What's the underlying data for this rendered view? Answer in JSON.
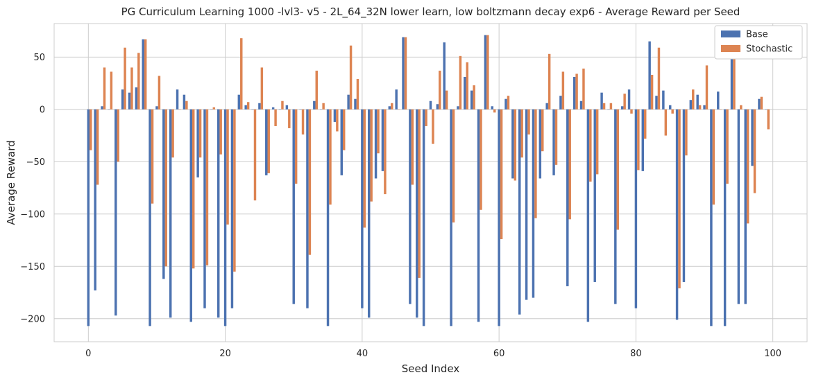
{
  "chart_data": {
    "type": "bar",
    "title": "PG Curriculum Learning 1000 -lvl3- v5 - 2L_64_32N lower learn, low boltzmann decay exp6 - Average Reward per Seed",
    "xlabel": "Seed Index",
    "ylabel": "Average Reward",
    "xlim": [
      -5,
      105
    ],
    "ylim": [
      -222,
      82
    ],
    "x_ticks": [
      0,
      20,
      40,
      60,
      80,
      100
    ],
    "y_ticks": [
      -200,
      -150,
      -100,
      -50,
      0,
      50
    ],
    "x_tick_labels": [
      "0",
      "20",
      "40",
      "60",
      "80",
      "100"
    ],
    "y_tick_labels": [
      "−200",
      "−150",
      "−100",
      "−50",
      "0",
      "50"
    ],
    "grid": true,
    "legend_position": "top-right",
    "bar_width": 0.35,
    "x": [
      0,
      1,
      2,
      3,
      4,
      5,
      6,
      7,
      8,
      9,
      10,
      11,
      12,
      13,
      14,
      15,
      16,
      17,
      18,
      19,
      20,
      21,
      22,
      23,
      24,
      25,
      26,
      27,
      28,
      29,
      30,
      31,
      32,
      33,
      34,
      35,
      36,
      37,
      38,
      39,
      40,
      41,
      42,
      43,
      44,
      45,
      46,
      47,
      48,
      49,
      50,
      51,
      52,
      53,
      54,
      55,
      56,
      57,
      58,
      59,
      60,
      61,
      62,
      63,
      64,
      65,
      66,
      67,
      68,
      69,
      70,
      71,
      72,
      73,
      74,
      75,
      76,
      77,
      78,
      79,
      80,
      81,
      82,
      83,
      84,
      85,
      86,
      87,
      88,
      89,
      90,
      91,
      92,
      93,
      94,
      95,
      96,
      97,
      98,
      99
    ],
    "series": [
      {
        "name": "Base",
        "color": "#4c72b0",
        "values": [
          -207,
          -173,
          3,
          0,
          -197,
          19,
          16,
          21,
          67,
          -207,
          3,
          -162,
          -199,
          19,
          14,
          -203,
          -65,
          -190,
          0,
          -199,
          -207,
          -190,
          14,
          4,
          0,
          6,
          -63,
          2,
          0,
          4,
          -186,
          0,
          -190,
          8,
          0,
          -207,
          -12,
          -63,
          14,
          10,
          -190,
          -199,
          -66,
          -59,
          3,
          19,
          69,
          -186,
          -199,
          -207,
          8,
          5,
          64,
          -207,
          3,
          31,
          18,
          -203,
          71,
          3,
          -207,
          10,
          -66,
          -196,
          -182,
          -180,
          -66,
          6,
          -63,
          13,
          -169,
          31,
          8,
          -203,
          -165,
          16,
          0,
          -186,
          3,
          19,
          -190,
          -59,
          65,
          13,
          18,
          4,
          -201,
          -165,
          9,
          14,
          4,
          -207,
          17,
          -207,
          54,
          -186,
          -186,
          -54,
          10,
          0
        ]
      },
      {
        "name": "Stochastic",
        "color": "#dd8452",
        "values": [
          -39,
          -72,
          40,
          36,
          -50,
          59,
          40,
          54,
          67,
          -90,
          32,
          -150,
          -46,
          0,
          8,
          -152,
          -46,
          -149,
          2,
          -43,
          -110,
          -155,
          68,
          7,
          -87,
          40,
          -61,
          -16,
          8,
          -18,
          -71,
          -24,
          -139,
          37,
          6,
          -91,
          -21,
          -39,
          61,
          29,
          -113,
          -88,
          -42,
          -81,
          6,
          0,
          69,
          -72,
          -161,
          -16,
          -33,
          37,
          18,
          -108,
          51,
          45,
          23,
          -96,
          71,
          -3,
          -124,
          13,
          -68,
          -46,
          -24,
          -104,
          -40,
          53,
          -53,
          36,
          -105,
          34,
          39,
          -69,
          -62,
          6,
          6,
          -115,
          15,
          -4,
          -58,
          -28,
          33,
          59,
          -25,
          -4,
          -171,
          -44,
          19,
          4,
          42,
          -91,
          0,
          -71,
          56,
          4,
          -109,
          -80,
          12,
          -19
        ]
      }
    ]
  }
}
